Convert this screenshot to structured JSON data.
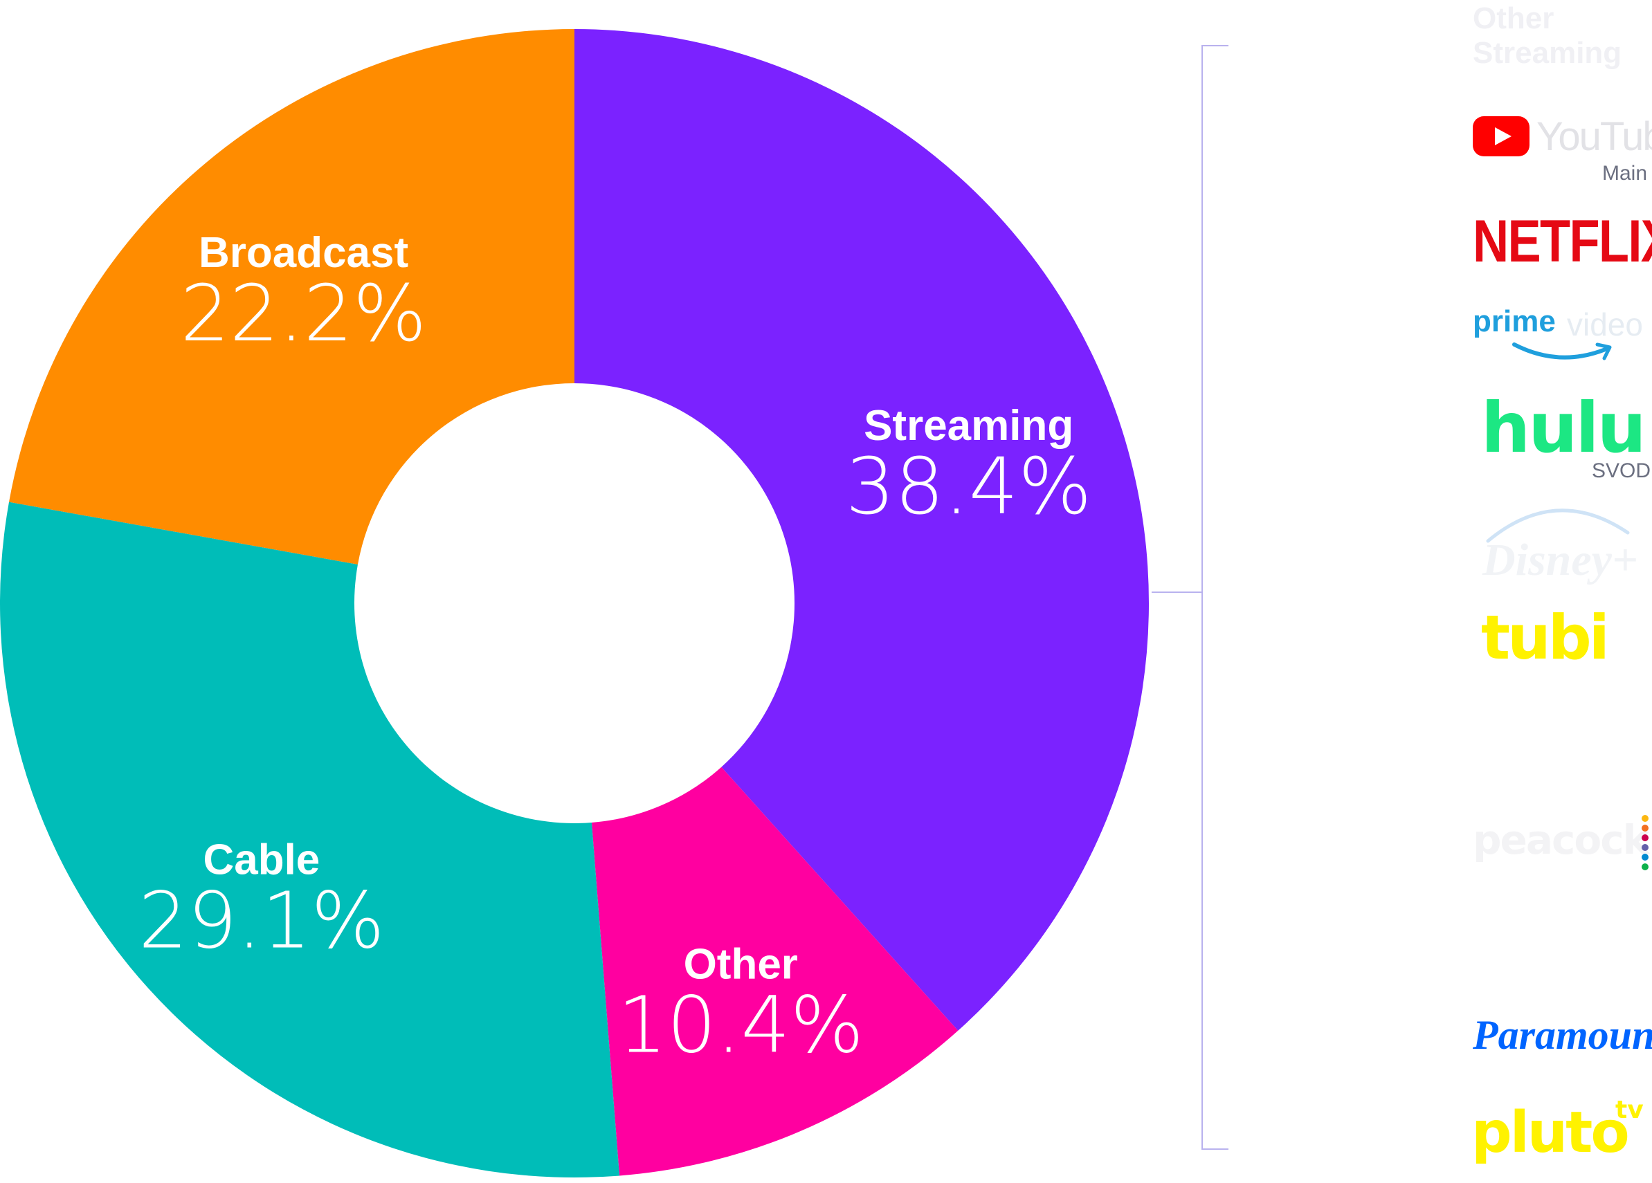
{
  "chart_data": {
    "type": "pie",
    "donut": true,
    "title": "",
    "categories": [
      "Streaming",
      "Other",
      "Cable",
      "Broadcast"
    ],
    "values": [
      38.4,
      10.4,
      29.1,
      22.2
    ],
    "value_labels": [
      "38.4%",
      "10.4%",
      "29.1%",
      "22.2%"
    ],
    "colors": [
      "#7b22ff",
      "#ff00a0",
      "#00bdb8",
      "#ff8c00"
    ],
    "start_angle_deg": 0,
    "direction": "clockwise",
    "legend": "none"
  },
  "sidebar": {
    "header": "Other Streaming",
    "bracket_color": "#b9b2ee",
    "logos": [
      {
        "name": "youtube-logo",
        "text": "YouTube",
        "sub": "Main"
      },
      {
        "name": "netflix-logo",
        "text": "NETFLIX"
      },
      {
        "name": "prime-video-logo",
        "text_a": "prime",
        "text_b": "video"
      },
      {
        "name": "hulu-logo",
        "text": "hulu",
        "sub": "SVOD"
      },
      {
        "name": "disney-plus-logo",
        "text": "Disney+"
      },
      {
        "name": "tubi-logo",
        "text": "tubi"
      },
      {
        "name": "peacock-logo",
        "text": "peacock"
      },
      {
        "name": "paramount-plus-logo",
        "text": "Paramount+"
      },
      {
        "name": "pluto-tv-logo",
        "text": "pluto",
        "text_b": "tv"
      }
    ]
  }
}
